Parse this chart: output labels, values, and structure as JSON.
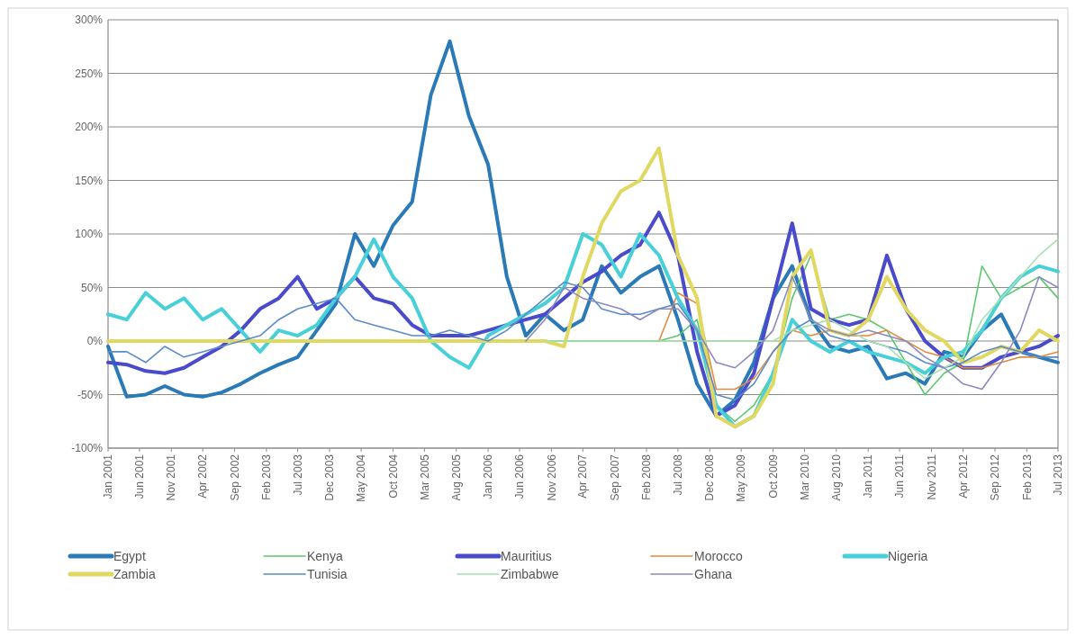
{
  "chart_data": {
    "type": "line",
    "x": [
      "2001-01",
      "2001-04",
      "2001-07",
      "2001-10",
      "2002-01",
      "2002-04",
      "2002-07",
      "2002-10",
      "2003-01",
      "2003-04",
      "2003-07",
      "2003-10",
      "2004-01",
      "2004-04",
      "2004-07",
      "2004-10",
      "2005-01",
      "2005-04",
      "2005-07",
      "2005-10",
      "2006-01",
      "2006-04",
      "2006-07",
      "2006-10",
      "2007-01",
      "2007-04",
      "2007-07",
      "2007-10",
      "2008-01",
      "2008-04",
      "2008-07",
      "2008-10",
      "2009-01",
      "2009-04",
      "2009-07",
      "2009-10",
      "2010-01",
      "2010-04",
      "2010-07",
      "2010-10",
      "2011-01",
      "2011-04",
      "2011-07",
      "2011-10",
      "2012-01",
      "2012-04",
      "2012-07",
      "2012-10",
      "2013-01",
      "2013-04",
      "2013-07"
    ],
    "series": [
      {
        "name": "Egypt",
        "color": "#2a7ab8",
        "values": [
          -5,
          -52,
          -50,
          -42,
          -50,
          -52,
          -48,
          -40,
          -30,
          -22,
          -15,
          10,
          35,
          100,
          70,
          108,
          130,
          230,
          280,
          210,
          165,
          60,
          5,
          25,
          10,
          20,
          70,
          45,
          60,
          70,
          20,
          -40,
          -70,
          -55,
          -20,
          40,
          70,
          20,
          -5,
          -10,
          -5,
          -35,
          -30,
          -40,
          -10,
          -15,
          10,
          25,
          -10,
          -15,
          -20
        ]
      },
      {
        "name": "Kenya",
        "color": "#5cc86c",
        "values": [
          null,
          null,
          null,
          null,
          null,
          null,
          null,
          null,
          null,
          null,
          null,
          null,
          null,
          null,
          null,
          null,
          null,
          null,
          null,
          null,
          null,
          null,
          null,
          0,
          0,
          0,
          0,
          0,
          0,
          0,
          5,
          20,
          -60,
          -75,
          -60,
          -30,
          40,
          80,
          20,
          25,
          20,
          10,
          -20,
          -50,
          -30,
          -20,
          70,
          40,
          50,
          60,
          40
        ]
      },
      {
        "name": "Mauritius",
        "color": "#4a4acc",
        "values": [
          -20,
          -22,
          -28,
          -30,
          -25,
          -15,
          -5,
          10,
          30,
          40,
          60,
          30,
          40,
          60,
          40,
          35,
          15,
          5,
          5,
          5,
          10,
          15,
          20,
          25,
          40,
          55,
          65,
          80,
          90,
          120,
          80,
          -10,
          -70,
          -60,
          -30,
          40,
          110,
          30,
          20,
          15,
          20,
          80,
          30,
          0,
          -15,
          -25,
          -25,
          -15,
          -10,
          -5,
          5
        ]
      },
      {
        "name": "Morocco",
        "color": "#e08a40",
        "values": [
          null,
          null,
          null,
          null,
          null,
          null,
          null,
          null,
          null,
          null,
          null,
          null,
          null,
          null,
          null,
          null,
          null,
          null,
          null,
          null,
          null,
          null,
          null,
          null,
          null,
          null,
          null,
          null,
          null,
          0,
          45,
          35,
          -45,
          -45,
          -35,
          -10,
          10,
          5,
          10,
          5,
          5,
          10,
          0,
          -10,
          -15,
          -25,
          -25,
          -20,
          -15,
          -15,
          -10
        ]
      },
      {
        "name": "Nigeria",
        "color": "#48d0d8",
        "values": [
          25,
          20,
          45,
          30,
          40,
          20,
          30,
          10,
          -10,
          10,
          5,
          15,
          40,
          60,
          95,
          60,
          40,
          0,
          -15,
          -25,
          5,
          15,
          25,
          35,
          50,
          100,
          90,
          60,
          100,
          80,
          40,
          10,
          -60,
          -80,
          -70,
          -30,
          20,
          0,
          -10,
          0,
          -10,
          -15,
          -20,
          -30,
          -15,
          -10,
          10,
          40,
          60,
          70,
          65
        ]
      },
      {
        "name": "Zambia",
        "color": "#e0d860",
        "values": [
          0,
          0,
          0,
          0,
          0,
          0,
          0,
          0,
          0,
          0,
          0,
          0,
          0,
          0,
          0,
          0,
          0,
          0,
          0,
          0,
          0,
          0,
          0,
          0,
          -5,
          60,
          110,
          140,
          150,
          180,
          80,
          40,
          -70,
          -80,
          -70,
          -40,
          60,
          85,
          10,
          5,
          20,
          60,
          30,
          10,
          0,
          -20,
          -15,
          -5,
          -10,
          10,
          0
        ]
      },
      {
        "name": "Tunisia",
        "color": "#5b8ac8",
        "values": [
          -10,
          -10,
          -20,
          -5,
          -15,
          -10,
          -5,
          0,
          5,
          20,
          30,
          35,
          40,
          20,
          15,
          10,
          5,
          5,
          10,
          5,
          0,
          10,
          25,
          40,
          55,
          50,
          30,
          25,
          25,
          30,
          35,
          10,
          -50,
          -55,
          -40,
          -10,
          10,
          20,
          5,
          0,
          0,
          -5,
          -10,
          -20,
          -25,
          -20,
          -10,
          -5,
          -10,
          -15,
          -15
        ]
      },
      {
        "name": "Zimbabwe",
        "color": "#a8e0b0",
        "values": [
          null,
          null,
          null,
          null,
          null,
          null,
          null,
          null,
          null,
          null,
          null,
          null,
          null,
          null,
          null,
          null,
          null,
          null,
          null,
          null,
          null,
          null,
          null,
          0,
          0,
          0,
          0,
          0,
          0,
          0,
          0,
          0,
          0,
          0,
          0,
          0,
          10,
          15,
          20,
          10,
          0,
          -5,
          -20,
          -35,
          -25,
          -15,
          20,
          40,
          60,
          80,
          95
        ]
      },
      {
        "name": "Ghana",
        "color": "#8a8ac0",
        "values": [
          null,
          null,
          null,
          null,
          null,
          null,
          null,
          null,
          null,
          null,
          null,
          null,
          null,
          null,
          null,
          null,
          null,
          null,
          null,
          null,
          null,
          null,
          0,
          20,
          50,
          40,
          35,
          30,
          20,
          30,
          30,
          10,
          -20,
          -25,
          -10,
          10,
          60,
          20,
          10,
          5,
          10,
          5,
          0,
          -15,
          -25,
          -40,
          -45,
          -20,
          10,
          60,
          50
        ]
      }
    ],
    "xlim": [
      "2001-01",
      "2013-07"
    ],
    "xticks": [
      {
        "value": "2001-01",
        "label": "Jan 2001"
      },
      {
        "value": "2001-06",
        "label": "Jun 2001"
      },
      {
        "value": "2001-11",
        "label": "Nov 2001"
      },
      {
        "value": "2002-04",
        "label": "Apr 2002"
      },
      {
        "value": "2002-09",
        "label": "Sep 2002"
      },
      {
        "value": "2003-02",
        "label": "Feb 2003"
      },
      {
        "value": "2003-07",
        "label": "Jul 2003"
      },
      {
        "value": "2003-12",
        "label": "Dec 2003"
      },
      {
        "value": "2004-05",
        "label": "May 2004"
      },
      {
        "value": "2004-10",
        "label": "Oct 2004"
      },
      {
        "value": "2005-03",
        "label": "Mar 2005"
      },
      {
        "value": "2005-08",
        "label": "Aug 2005"
      },
      {
        "value": "2006-01",
        "label": "Jan 2006"
      },
      {
        "value": "2006-06",
        "label": "Jun 2006"
      },
      {
        "value": "2006-11",
        "label": "Nov 2006"
      },
      {
        "value": "2007-04",
        "label": "Apr 2007"
      },
      {
        "value": "2007-09",
        "label": "Sep 2007"
      },
      {
        "value": "2008-02",
        "label": "Feb 2008"
      },
      {
        "value": "2008-07",
        "label": "Jul 2008"
      },
      {
        "value": "2008-12",
        "label": "Dec 2008"
      },
      {
        "value": "2009-05",
        "label": "May 2009"
      },
      {
        "value": "2009-10",
        "label": "Oct 2009"
      },
      {
        "value": "2010-03",
        "label": "Mar 2010"
      },
      {
        "value": "2010-08",
        "label": "Aug 2010"
      },
      {
        "value": "2011-01",
        "label": "Jan 2011"
      },
      {
        "value": "2011-06",
        "label": "Jun 2011"
      },
      {
        "value": "2011-11",
        "label": "Nov 2011"
      },
      {
        "value": "2012-04",
        "label": "Apr 2012"
      },
      {
        "value": "2012-09",
        "label": "Sep 2012"
      },
      {
        "value": "2013-02",
        "label": "Feb 2013"
      },
      {
        "value": "2013-07",
        "label": "Jul 2013"
      }
    ],
    "ylim": [
      -100,
      300
    ],
    "yticks": [
      {
        "value": -100,
        "label": "-100%"
      },
      {
        "value": -50,
        "label": "-50%"
      },
      {
        "value": 0,
        "label": "0%"
      },
      {
        "value": 50,
        "label": "50%"
      },
      {
        "value": 100,
        "label": "100%"
      },
      {
        "value": 150,
        "label": "150%"
      },
      {
        "value": 200,
        "label": "200%"
      },
      {
        "value": 250,
        "label": "250%"
      },
      {
        "value": 300,
        "label": "300%"
      }
    ],
    "grid": "y",
    "legend": "bottom",
    "marker": "none",
    "line_style": "solid"
  }
}
